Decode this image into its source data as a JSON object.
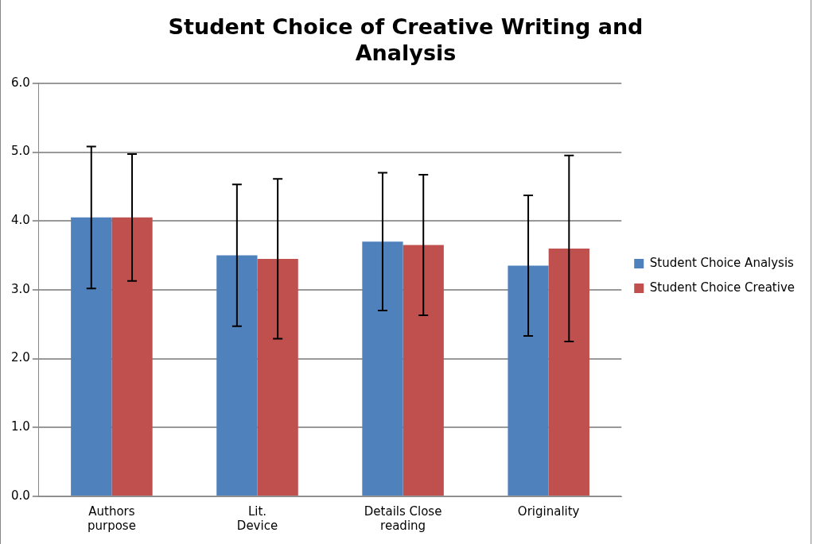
{
  "chart_data": {
    "type": "bar",
    "title": "Student Choice of Creative Writing and Analysis",
    "categories": [
      "Authors purpose",
      "Lit. Device",
      "Details Close reading",
      "Originality"
    ],
    "series": [
      {
        "name": "Student Choice Analysis",
        "color": "#4f81bd",
        "values": [
          4.05,
          3.5,
          3.7,
          3.35
        ],
        "errors": [
          1.03,
          1.03,
          1.0,
          1.02
        ]
      },
      {
        "name": "Student Choice Creative",
        "color": "#c0504d",
        "values": [
          4.05,
          3.45,
          3.65,
          3.6
        ],
        "errors": [
          0.92,
          1.16,
          1.02,
          1.35
        ]
      }
    ],
    "ylim": [
      0,
      6
    ],
    "yticks": [
      {
        "value": 0,
        "label": "0.0"
      },
      {
        "value": 1,
        "label": "1.0"
      },
      {
        "value": 2,
        "label": "2.0"
      },
      {
        "value": 3,
        "label": "3.0"
      },
      {
        "value": 4,
        "label": "4.0"
      },
      {
        "value": 5,
        "label": "5.0"
      },
      {
        "value": 6,
        "label": "6.0"
      }
    ],
    "grid": "y",
    "legend": "right"
  }
}
